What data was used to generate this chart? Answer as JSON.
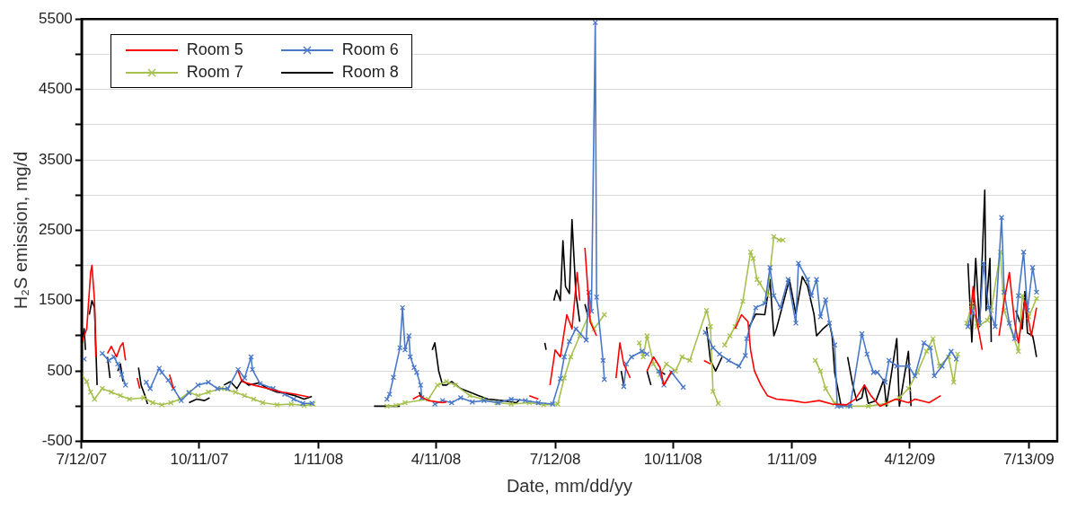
{
  "chart_data": {
    "type": "line",
    "xlabel": "Date, mm/dd/yy",
    "ylabel": "H₂S emission, mg/d",
    "xlim": [
      "2007-07-12",
      "2009-08-04"
    ],
    "xticks": [
      {
        "value": "2007-07-12",
        "label": "7/12/07"
      },
      {
        "value": "2007-10-11",
        "label": "10/11/07"
      },
      {
        "value": "2008-01-11",
        "label": "1/11/08"
      },
      {
        "value": "2008-04-11",
        "label": "4/11/08"
      },
      {
        "value": "2008-07-12",
        "label": "7/12/08"
      },
      {
        "value": "2008-10-11",
        "label": "10/11/08"
      },
      {
        "value": "2009-01-11",
        "label": "1/11/09"
      },
      {
        "value": "2009-04-12",
        "label": "4/12/09"
      },
      {
        "value": "2009-07-13",
        "label": "7/13/09"
      }
    ],
    "ylim": [
      -500,
      5500
    ],
    "yticks": [
      -500,
      {
        "value": 0,
        "label": null
      },
      500,
      {
        "value": 1000,
        "label": null
      },
      1500,
      {
        "value": 2000,
        "label": null
      },
      2500,
      {
        "value": 3000,
        "label": null
      },
      3500,
      {
        "value": 4000,
        "label": null
      },
      4500,
      {
        "value": 5000,
        "label": null
      },
      5500
    ],
    "grid": "y",
    "legend": "top left",
    "series": [
      {
        "name": "Room 5",
        "color": "#ff0000",
        "marker": "none",
        "x": [
          "2007-07-12",
          "2007-07-16",
          "2007-07-19",
          "2007-07-20",
          "2007-07-22",
          "2007-07-23",
          "2007-07-27",
          "2007-08-01",
          "2007-08-04",
          "2007-08-08",
          "2007-08-11",
          "2007-08-13",
          "2007-08-15",
          "2007-08-19",
          "2007-08-24",
          "2007-08-26",
          "2007-08-31",
          "2007-09-18",
          "2007-09-21",
          "2007-10-20",
          "2007-11-10",
          "2007-11-13",
          "2007-11-22",
          "2007-12-03",
          "2007-12-14",
          "2007-12-24",
          "2008-01-04",
          "2008-02-15",
          "2008-03-24",
          "2008-03-29",
          "2008-04-05",
          "2008-04-16",
          "2008-04-19",
          "2008-05-20",
          "2008-06-22",
          "2008-06-29",
          "2008-07-04",
          "2008-07-08",
          "2008-07-12",
          "2008-07-16",
          "2008-07-21",
          "2008-07-25",
          "2008-07-29",
          "2008-07-31",
          "2008-08-02",
          "2008-08-04",
          "2008-08-08",
          "2008-08-13",
          "2008-08-20",
          "2008-08-28",
          "2008-08-31",
          "2008-09-03",
          "2008-09-08",
          "2008-09-14",
          "2008-09-21",
          "2008-09-26",
          "2008-10-01",
          "2008-10-04",
          "2008-10-10",
          "2008-10-20",
          "2008-11-04",
          "2008-11-09",
          "2008-11-20",
          "2008-11-28",
          "2008-12-03",
          "2008-12-08",
          "2008-12-10",
          "2008-12-13",
          "2008-12-18",
          "2008-12-23",
          "2008-12-30",
          "2009-01-11",
          "2009-01-21",
          "2009-02-01",
          "2009-02-11",
          "2009-02-22",
          "2009-03-01",
          "2009-03-08",
          "2009-03-13",
          "2009-03-20",
          "2009-04-01",
          "2009-04-11",
          "2009-04-16",
          "2009-04-27",
          "2009-05-06",
          "2009-05-20",
          "2009-05-29",
          "2009-05-31",
          "2009-06-03",
          "2009-06-07",
          "2009-06-14",
          "2009-06-20",
          "2009-06-24",
          "2009-06-28",
          "2009-07-02",
          "2009-07-05",
          "2009-07-10",
          "2009-07-15",
          "2009-07-19"
        ],
        "values": [
          900,
          1100,
          1900,
          2000,
          1500,
          700,
          null,
          750,
          850,
          700,
          850,
          900,
          650,
          null,
          400,
          250,
          null,
          450,
          250,
          null,
          500,
          350,
          300,
          250,
          200,
          170,
          130,
          null,
          100,
          150,
          80,
          50,
          60,
          null,
          150,
          100,
          null,
          300,
          800,
          700,
          1300,
          1100,
          1900,
          1500,
          null,
          2250,
          1200,
          1000,
          null,
          400,
          900,
          600,
          400,
          null,
          500,
          700,
          550,
          300,
          500,
          null,
          650,
          600,
          null,
          1100,
          1300,
          1200,
          800,
          500,
          300,
          150,
          100,
          80,
          50,
          80,
          30,
          20,
          100,
          300,
          150,
          0,
          100,
          50,
          100,
          50,
          150,
          null,
          1300,
          1700,
          1200,
          800,
          null,
          1000,
          1500,
          1900,
          1200,
          900,
          1500,
          1000,
          1400
        ]
      },
      {
        "name": "Room 6",
        "color": "#4a78c8",
        "marker": "cross",
        "x": [
          "2007-07-14",
          "2007-07-22",
          "2007-07-28",
          "2007-08-02",
          "2007-08-06",
          "2007-08-09",
          "2007-08-12",
          "2007-08-15",
          "2007-08-22",
          "2007-08-31",
          "2007-09-03",
          "2007-09-10",
          "2007-09-12",
          "2007-09-17",
          "2007-09-21",
          "2007-09-27",
          "2007-10-03",
          "2007-10-10",
          "2007-10-18",
          "2007-10-25",
          "2007-11-02",
          "2007-11-10",
          "2007-11-15",
          "2007-11-20",
          "2007-11-21",
          "2007-11-27",
          "2007-12-07",
          "2007-12-16",
          "2007-12-23",
          "2007-12-30",
          "2008-01-06",
          "2008-02-15",
          "2008-03-04",
          "2008-03-06",
          "2008-03-09",
          "2008-03-14",
          "2008-03-16",
          "2008-03-18",
          "2008-03-21",
          "2008-03-22",
          "2008-03-25",
          "2008-03-27",
          "2008-03-30",
          "2008-03-31",
          "2008-04-04",
          "2008-04-10",
          "2008-04-16",
          "2008-04-23",
          "2008-04-30",
          "2008-05-09",
          "2008-05-18",
          "2008-05-29",
          "2008-06-08",
          "2008-06-19",
          "2008-06-29",
          "2008-07-10",
          "2008-07-16",
          "2008-07-19",
          "2008-07-23",
          "2008-07-28",
          "2008-08-05",
          "2008-08-07",
          "2008-08-09",
          "2008-08-12",
          "2008-08-13",
          "2008-08-18",
          "2008-08-19",
          "2008-08-25",
          "2008-09-03",
          "2008-09-05",
          "2008-09-09",
          "2008-09-17",
          "2008-09-21",
          "2008-09-25",
          "2008-09-30",
          "2008-10-04",
          "2008-10-10",
          "2008-10-19",
          "2008-10-25",
          "2008-11-05",
          "2008-11-11",
          "2008-11-16",
          "2008-11-23",
          "2008-12-01",
          "2008-12-06",
          "2008-12-07",
          "2008-12-14",
          "2008-12-21",
          "2008-12-25",
          "2008-12-28",
          "2009-01-02",
          "2009-01-08",
          "2009-01-14",
          "2009-01-16",
          "2009-01-23",
          "2009-01-26",
          "2009-01-30",
          "2009-02-02",
          "2009-02-06",
          "2009-02-09",
          "2009-02-13",
          "2009-02-15",
          "2009-02-18",
          "2009-02-25",
          "2009-03-06",
          "2009-03-10",
          "2009-03-15",
          "2009-03-18",
          "2009-03-24",
          "2009-03-27",
          "2009-04-02",
          "2009-04-11",
          "2009-04-16",
          "2009-04-23",
          "2009-04-28",
          "2009-05-01",
          "2009-05-07",
          "2009-05-14",
          "2009-05-18",
          "2009-05-24",
          "2009-05-27",
          "2009-05-30",
          "2009-06-05",
          "2009-06-08",
          "2009-06-12",
          "2009-06-17",
          "2009-06-22",
          "2009-06-24",
          "2009-06-28",
          "2009-07-02",
          "2009-07-05",
          "2009-07-09",
          "2009-07-12",
          "2009-07-16",
          "2009-07-19"
        ],
        "values": [
          670,
          null,
          750,
          650,
          700,
          600,
          450,
          300,
          null,
          340,
          250,
          540,
          480,
          370,
          250,
          80,
          190,
          300,
          340,
          250,
          250,
          520,
          400,
          700,
          520,
          320,
          250,
          170,
          100,
          40,
          40,
          null,
          100,
          170,
          410,
          830,
          1400,
          800,
          1000,
          700,
          550,
          480,
          300,
          120,
          null,
          30,
          80,
          50,
          120,
          60,
          80,
          50,
          100,
          80,
          50,
          30,
          390,
          700,
          920,
          1100,
          940,
          1620,
          1350,
          5450,
          1550,
          650,
          380,
          null,
          280,
          600,
          700,
          780,
          740,
          null,
          500,
          300,
          480,
          270,
          null,
          1050,
          830,
          740,
          650,
          570,
          720,
          960,
          1400,
          1460,
          1970,
          1570,
          1400,
          1800,
          1180,
          2030,
          1800,
          1570,
          1800,
          1270,
          1510,
          1180,
          870,
          0,
          0,
          0,
          1030,
          740,
          480,
          480,
          340,
          650,
          570,
          570,
          430,
          900,
          830,
          430,
          570,
          780,
          670,
          null,
          1130,
          1360,
          1180,
          2030,
          1400,
          1130,
          2680,
          1620,
          1180,
          960,
          1570,
          2190,
          1360,
          1970,
          1620
        ]
      },
      {
        "name": "Room 7",
        "color": "#a6c14e",
        "marker": "cross",
        "x": [
          "2007-07-12",
          "2007-07-16",
          "2007-07-19",
          "2007-07-22",
          "2007-07-28",
          "2007-08-04",
          "2007-08-11",
          "2007-08-18",
          "2007-08-29",
          "2007-09-05",
          "2007-09-12",
          "2007-09-19",
          "2007-09-26",
          "2007-10-03",
          "2007-10-10",
          "2007-10-18",
          "2007-10-28",
          "2007-11-08",
          "2007-11-15",
          "2007-11-22",
          "2007-11-29",
          "2007-12-10",
          "2007-12-21",
          "2007-12-31",
          "2008-01-07",
          "2008-02-15",
          "2008-03-04",
          "2008-03-11",
          "2008-03-18",
          "2008-04-05",
          "2008-04-12",
          "2008-04-19",
          "2008-04-26",
          "2008-05-07",
          "2008-05-17",
          "2008-05-28",
          "2008-06-08",
          "2008-06-22",
          "2008-07-03",
          "2008-07-14",
          "2008-07-19",
          "2008-07-24",
          "2008-07-31",
          "2008-08-07",
          "2008-08-11",
          "2008-08-19",
          "2008-08-28",
          "2008-09-15",
          "2008-09-18",
          "2008-09-21",
          "2008-09-26",
          "2008-10-01",
          "2008-10-06",
          "2008-10-13",
          "2008-10-18",
          "2008-10-24",
          "2008-11-06",
          "2008-11-09",
          "2008-11-11",
          "2008-11-15",
          "2008-11-18",
          "2008-11-20",
          "2008-11-24",
          "2008-11-28",
          "2008-12-04",
          "2008-12-10",
          "2008-12-12",
          "2008-12-15",
          "2008-12-17",
          "2008-12-23",
          "2008-12-28",
          "2009-01-01",
          "2009-01-04",
          "2009-01-15",
          "2009-01-29",
          "2009-02-02",
          "2009-02-06",
          "2009-02-13",
          "2009-02-23",
          "2009-03-11",
          "2009-03-25",
          "2009-04-04",
          "2009-04-11",
          "2009-04-18",
          "2009-04-25",
          "2009-04-30",
          "2009-05-05",
          "2009-05-12",
          "2009-05-16",
          "2009-05-19",
          "2009-05-24",
          "2009-05-26",
          "2009-05-30",
          "2009-06-03",
          "2009-06-11",
          "2009-06-14",
          "2009-06-21",
          "2009-06-24",
          "2009-07-05",
          "2009-07-08",
          "2009-07-13",
          "2009-07-19"
        ],
        "values": [
          450,
          350,
          200,
          100,
          250,
          200,
          150,
          100,
          120,
          50,
          20,
          50,
          100,
          200,
          150,
          200,
          250,
          200,
          150,
          100,
          50,
          20,
          30,
          10,
          30,
          null,
          0,
          10,
          50,
          100,
          300,
          350,
          300,
          150,
          100,
          50,
          30,
          50,
          20,
          30,
          400,
          700,
          1000,
          1300,
          1100,
          1300,
          null,
          900,
          700,
          1000,
          600,
          450,
          600,
          500,
          700,
          650,
          1360,
          1130,
          210,
          40,
          null,
          870,
          1000,
          1130,
          1490,
          2190,
          2100,
          1800,
          1750,
          1570,
          2410,
          2360,
          2360,
          null,
          650,
          500,
          250,
          40,
          0,
          0,
          40,
          120,
          250,
          480,
          780,
          960,
          570,
          700,
          340,
          740,
          null,
          1180,
          1440,
          1130,
          1220,
          1360,
          2190,
          1360,
          780,
          1570,
          1270,
          1530
        ]
      },
      {
        "name": "Room 8",
        "color": "#000000",
        "marker": "none",
        "x": [
          "2007-07-12",
          "2007-07-14",
          "2007-07-15",
          "2007-07-16",
          "2007-07-18",
          "2007-07-20",
          "2007-07-22",
          "2007-07-24",
          "2007-07-28",
          "2007-08-01",
          "2007-08-03",
          "2007-08-06",
          "2007-08-09",
          "2007-08-11",
          "2007-08-13",
          "2007-08-18",
          "2007-08-25",
          "2007-08-27",
          "2007-08-30",
          "2007-09-01",
          "2007-09-20",
          "2007-10-03",
          "2007-10-09",
          "2007-10-15",
          "2007-10-19",
          "2007-10-25",
          "2007-10-30",
          "2007-11-04",
          "2007-11-09",
          "2007-11-13",
          "2007-11-18",
          "2007-11-26",
          "2007-12-03",
          "2007-12-10",
          "2007-12-17",
          "2007-12-24",
          "2007-12-31",
          "2008-01-06",
          "2008-02-10",
          "2008-02-23",
          "2008-03-14",
          "2008-03-20",
          "2008-03-29",
          "2008-03-31",
          "2008-04-04",
          "2008-04-08",
          "2008-04-10",
          "2008-04-13",
          "2008-04-16",
          "2008-04-19",
          "2008-04-23",
          "2008-04-30",
          "2008-05-07",
          "2008-05-14",
          "2008-05-21",
          "2008-06-01",
          "2008-06-12",
          "2008-06-15",
          "2008-06-25",
          "2008-07-04",
          "2008-07-05",
          "2008-07-08",
          "2008-07-11",
          "2008-07-13",
          "2008-07-16",
          "2008-07-18",
          "2008-07-20",
          "2008-07-23",
          "2008-07-25",
          "2008-07-28",
          "2008-07-31",
          "2008-08-02",
          "2008-08-04",
          "2008-08-06",
          "2008-08-10",
          "2008-09-01",
          "2008-09-03",
          "2008-09-10",
          "2008-09-21",
          "2008-09-24",
          "2008-09-28",
          "2008-10-01",
          "2008-10-05",
          "2008-10-20",
          "2008-11-06",
          "2008-11-09",
          "2008-11-13",
          "2008-11-18",
          "2008-11-25",
          "2008-12-09",
          "2008-12-14",
          "2008-12-21",
          "2008-12-25",
          "2008-12-28",
          "2008-12-30",
          "2009-01-09",
          "2009-01-14",
          "2009-01-19",
          "2009-01-23",
          "2009-01-28",
          "2009-01-30",
          "2009-02-04",
          "2009-02-09",
          "2009-02-11",
          "2009-02-13",
          "2009-02-18",
          "2009-02-20",
          "2009-02-23",
          "2009-02-27",
          "2009-03-02",
          "2009-03-06",
          "2009-03-08",
          "2009-03-11",
          "2009-03-17",
          "2009-03-23",
          "2009-03-25",
          "2009-04-02",
          "2009-04-04",
          "2009-04-11",
          "2009-04-13",
          "2009-05-20",
          "2009-05-27",
          "2009-05-30",
          "2009-06-02",
          "2009-06-05",
          "2009-06-09",
          "2009-06-10",
          "2009-06-13",
          "2009-06-14",
          "2009-06-25",
          "2009-07-03",
          "2009-07-08",
          "2009-07-10",
          "2009-07-12",
          "2009-07-16",
          "2009-07-17",
          "2009-07-19"
        ],
        "values": [
          850,
          1100,
          800,
          null,
          1300,
          1500,
          1400,
          300,
          null,
          700,
          400,
          null,
          500,
          600,
          350,
          null,
          550,
          300,
          150,
          30,
          null,
          50,
          100,
          80,
          120,
          null,
          300,
          350,
          250,
          370,
          300,
          330,
          250,
          200,
          180,
          150,
          100,
          140,
          null,
          0,
          0,
          null,
          200,
          100,
          null,
          800,
          900,
          500,
          300,
          300,
          350,
          250,
          200,
          150,
          100,
          80,
          50,
          100,
          null,
          900,
          800,
          null,
          1500,
          1650,
          1500,
          2350,
          1700,
          1600,
          2650,
          1600,
          1200,
          null,
          1450,
          1300,
          null,
          500,
          300,
          null,
          500,
          300,
          null,
          500,
          450,
          null,
          1130,
          650,
          500,
          700,
          null,
          1130,
          1310,
          1300,
          1800,
          1000,
          1100,
          1800,
          1310,
          1840,
          1710,
          1310,
          1000,
          1100,
          1180,
          1000,
          480,
          0,
          null,
          700,
          300,
          80,
          120,
          300,
          40,
          80,
          380,
          0,
          960,
          0,
          780,
          0,
          null,
          2030,
          910,
          2100,
          1130,
          3070,
          1360,
          2100,
          910,
          null,
          1360,
          1100,
          1630,
          1040,
          1000,
          910,
          700
        ]
      }
    ]
  }
}
